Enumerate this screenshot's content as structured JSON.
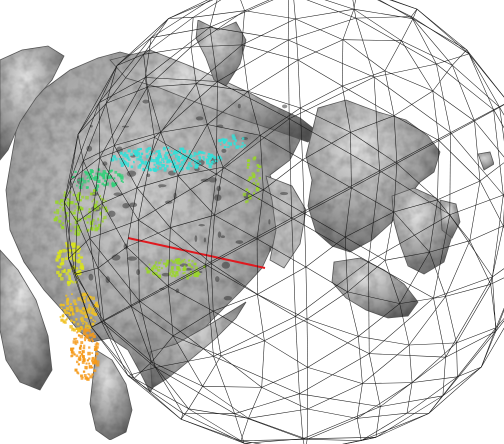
{
  "scene": {
    "background_color": "#ffffff",
    "mesh_color": "#1a1a1a",
    "surface_color": "#8e8e8e",
    "surface_highlight": "#d6d6d6",
    "surface_shadow": "#4a4a4a",
    "measurement_line_color": "#e0191f",
    "point_cloud_colors": [
      "#33e0d8",
      "#33d07a",
      "#9ad62a",
      "#d9e21e",
      "#f0c020",
      "#f59a1a"
    ]
  }
}
